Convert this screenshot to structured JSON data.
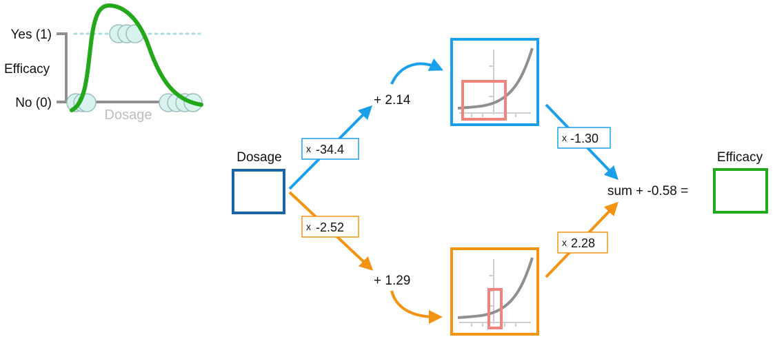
{
  "colors": {
    "blue": "#1a9fea",
    "dark_blue": "#1a64a8",
    "orange": "#f39312",
    "green": "#23a81b",
    "grey": "#8f8f8f",
    "light_grey": "#bdbdbd",
    "dot_fill": "#d7f2ef",
    "dot_stroke": "#9bbfbb",
    "salmon": "#f0847c",
    "dotted_line": "#a9dde0"
  },
  "inset_plot": {
    "y_top_label": "Yes (1)",
    "y_bottom_label": "No (0)",
    "y_axis_label": "Efficacy",
    "x_axis_label": "Dosage"
  },
  "network": {
    "input_label": "Dosage",
    "output_label": "Efficacy",
    "top_weight": "-34.4",
    "bottom_weight": "-2.52",
    "top_bias": "+ 2.14",
    "bottom_bias": "+ 1.29",
    "top_out_weight": "-1.30",
    "bottom_out_weight": "2.28",
    "sum_label": "sum + -0.58 =",
    "times_sign": "x"
  }
}
